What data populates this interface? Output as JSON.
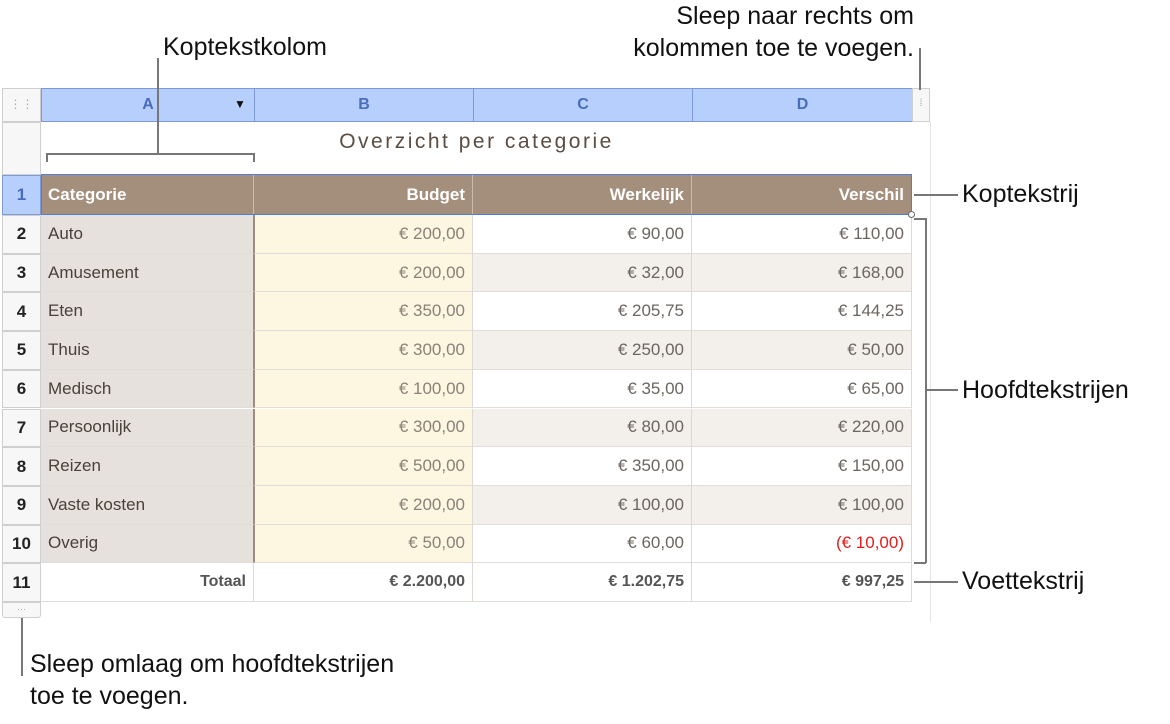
{
  "callouts": {
    "header_column": "Koptekstkolom",
    "add_columns": [
      "Sleep naar rechts om",
      "kolommen toe te voegen."
    ],
    "header_row": "Koptekstrij",
    "body_rows": "Hoofdtekstrijen",
    "footer_row": "Voettekstrij",
    "add_rows": [
      "Sleep omlaag om hoofdtekstrijen",
      "toe te voegen."
    ]
  },
  "columns": [
    "A",
    "B",
    "C",
    "D"
  ],
  "table_title": "Overzicht per categorie",
  "header": [
    "Categorie",
    "Budget",
    "Werkelijk",
    "Verschil"
  ],
  "rows": [
    [
      "Auto",
      "€ 200,00",
      "€ 90,00",
      "€ 110,00"
    ],
    [
      "Amusement",
      "€ 200,00",
      "€ 32,00",
      "€ 168,00"
    ],
    [
      "Eten",
      "€ 350,00",
      "€ 205,75",
      "€ 144,25"
    ],
    [
      "Thuis",
      "€ 300,00",
      "€ 250,00",
      "€ 50,00"
    ],
    [
      "Medisch",
      "€ 100,00",
      "€ 35,00",
      "€ 65,00"
    ],
    [
      "Persoonlijk",
      "€ 300,00",
      "€ 80,00",
      "€ 220,00"
    ],
    [
      "Reizen",
      "€ 500,00",
      "€ 350,00",
      "€ 150,00"
    ],
    [
      "Vaste kosten",
      "€ 200,00",
      "€ 100,00",
      "€ 100,00"
    ],
    [
      "Overig",
      "€ 50,00",
      "€ 60,00",
      "(€ 10,00)"
    ]
  ],
  "footer": [
    "Totaal",
    "€ 2.200,00",
    "€ 1.202,75",
    "€ 997,25"
  ],
  "row_numbers": [
    "1",
    "2",
    "3",
    "4",
    "5",
    "6",
    "7",
    "8",
    "9",
    "10",
    "11"
  ],
  "colors": {
    "header": "#a38f7c",
    "col_header": "#b6cffd",
    "negative": "#e0201c"
  }
}
